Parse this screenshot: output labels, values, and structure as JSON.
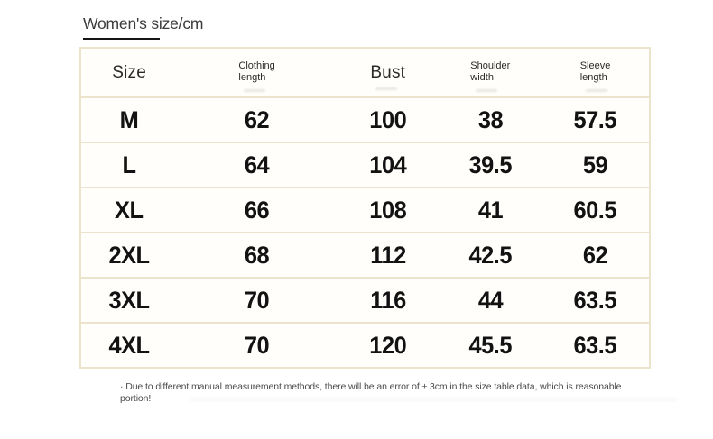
{
  "title": "Women's size/cm",
  "chart_data": {
    "type": "table",
    "title": "Women's size/cm",
    "columns": [
      "Size",
      "Clothing length",
      "Bust",
      "Shoulder width",
      "Sleeve length"
    ],
    "rows": [
      [
        "M",
        "62",
        "100",
        "38",
        "57.5"
      ],
      [
        "L",
        "64",
        "104",
        "39.5",
        "59"
      ],
      [
        "XL",
        "66",
        "108",
        "41",
        "60.5"
      ],
      [
        "2XL",
        "68",
        "112",
        "42.5",
        "62"
      ],
      [
        "3XL",
        "70",
        "116",
        "44",
        "63.5"
      ],
      [
        "4XL",
        "70",
        "120",
        "45.5",
        "63.5"
      ]
    ]
  },
  "header": {
    "size": "Size",
    "clothing": [
      "Clothing",
      "length"
    ],
    "bust": "Bust",
    "shoulder": [
      "Shoulder",
      "width"
    ],
    "sleeve": [
      "Sleeve",
      "length"
    ]
  },
  "footnote": {
    "lines": [
      "· Due to different manual measurement methods, there will be an error of ± 3cm in the size table data, which is reasonable",
      "portion!"
    ]
  },
  "colors": {
    "table_border": "#ebe3cc",
    "title_underline": "#151515",
    "cell_background": "#fffefb",
    "data_text": "#121212",
    "footnote_text": "#4a4a4a"
  }
}
